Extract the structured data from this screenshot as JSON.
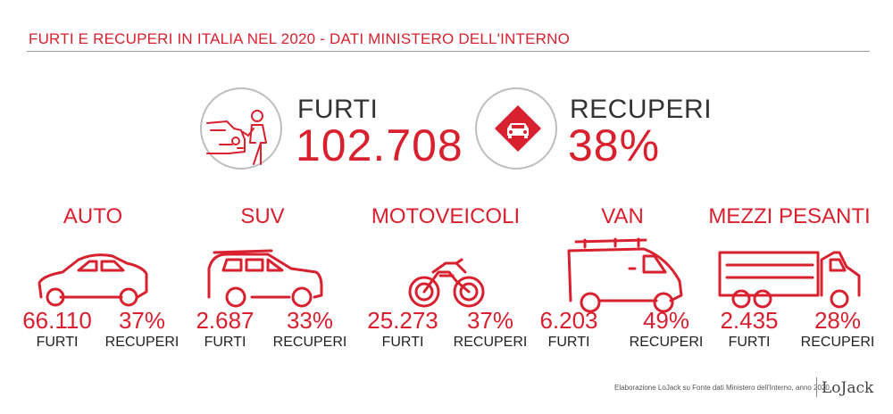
{
  "header": {
    "title": "FURTI E RECUPERI IN ITALIA NEL 2020 - DATI MINISTERO DELL'INTERNO"
  },
  "summary": {
    "thefts": {
      "label": "FURTI",
      "value": "102.708",
      "icon": "car-thief-icon"
    },
    "recoveries": {
      "label": "RECUPERI",
      "value": "38%",
      "icon": "recovered-car-pin-icon"
    }
  },
  "categories": [
    {
      "name": "AUTO",
      "icon": "car-icon",
      "thefts": "66.110",
      "thefts_label": "FURTI",
      "recovered": "37%",
      "recovered_label": "RECUPERI"
    },
    {
      "name": "SUV",
      "icon": "suv-icon",
      "thefts": "2.687",
      "thefts_label": "FURTI",
      "recovered": "33%",
      "recovered_label": "RECUPERI"
    },
    {
      "name": "MOTOVEICOLI",
      "icon": "motorcycle-icon",
      "thefts": "25.273",
      "thefts_label": "FURTI",
      "recovered": "37%",
      "recovered_label": "RECUPERI"
    },
    {
      "name": "VAN",
      "icon": "van-icon",
      "thefts": "6.203",
      "thefts_label": "FURTI",
      "recovered": "49%",
      "recovered_label": "RECUPERI"
    },
    {
      "name": "MEZZI PESANTI",
      "icon": "truck-icon",
      "thefts": "2.435",
      "thefts_label": "FURTI",
      "recovered": "28%",
      "recovered_label": "RECUPERI"
    }
  ],
  "footer": {
    "credit": "Elaborazione LoJack su Fonte dati Ministero dell'Interno, anno 2020",
    "brand": "LoJack"
  },
  "colors": {
    "accent": "#d8202f",
    "text": "#222222",
    "rule": "#9a9a9a",
    "circle": "#bdbdbd"
  }
}
